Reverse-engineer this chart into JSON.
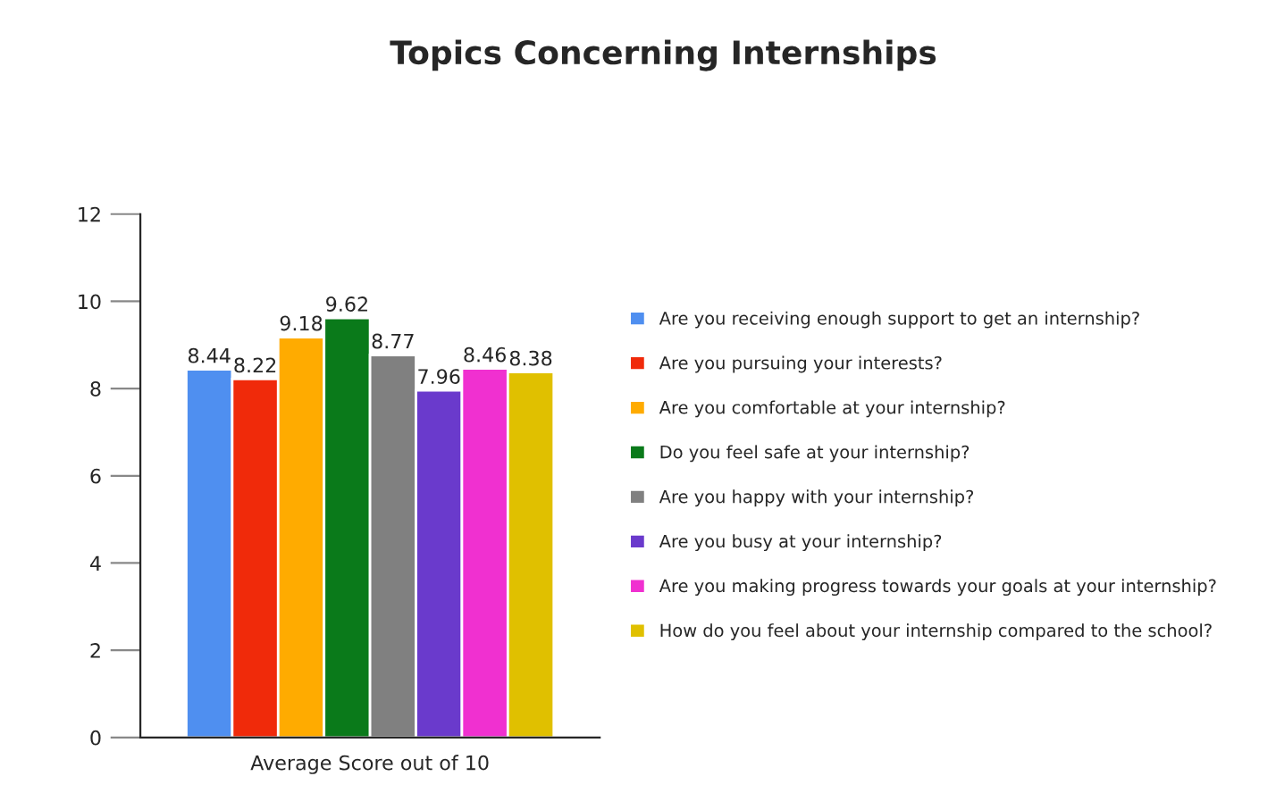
{
  "chart_data": {
    "type": "bar",
    "title": "Topics Concerning Internships",
    "categories": [
      "Average Score out of 10"
    ],
    "series": [
      {
        "name": "Are you receiving enough support to get an internship?",
        "color": "#4f8ff0",
        "values": [
          8.44
        ]
      },
      {
        "name": "Are you pursuing your interests?",
        "color": "#f02a0a",
        "values": [
          8.22
        ]
      },
      {
        "name": "Are you comfortable at your internship?",
        "color": "#ffab00",
        "values": [
          9.18
        ]
      },
      {
        "name": "Do you feel safe at your internship?",
        "color": "#0a7a1a",
        "values": [
          9.62
        ]
      },
      {
        "name": "Are you happy with your internship?",
        "color": "#808080",
        "values": [
          8.77
        ]
      },
      {
        "name": "Are you busy at your internship?",
        "color": "#6a3acc",
        "values": [
          7.96
        ]
      },
      {
        "name": "Are you making progress towards your goals at your internship?",
        "color": "#f030d0",
        "values": [
          8.46
        ]
      },
      {
        "name": "How do you feel about your internship compared to the school?",
        "color": "#e0c000",
        "values": [
          8.38
        ]
      }
    ],
    "ylim": [
      0,
      12
    ],
    "yticks": [
      0,
      2,
      4,
      6,
      8,
      10,
      12
    ],
    "grid": false,
    "data_labels": true,
    "legend": "right"
  }
}
